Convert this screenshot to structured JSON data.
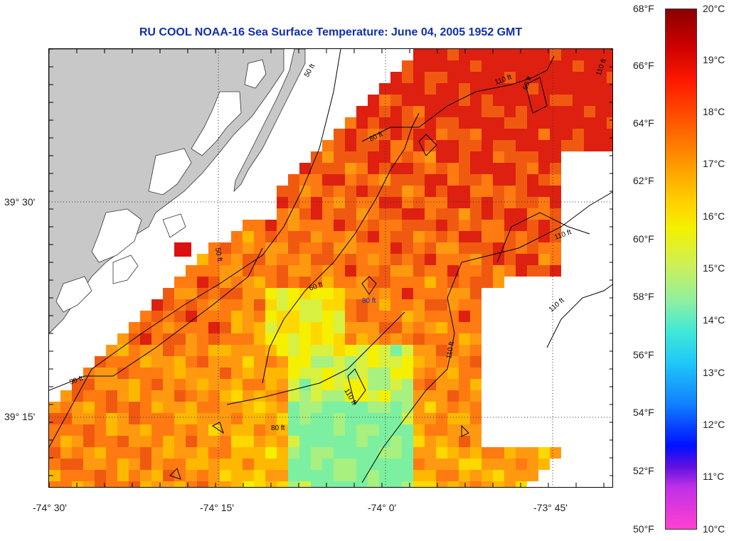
{
  "title": "RU COOL  NOAA-16  Sea Surface Temperature:  June 04, 2005 1952 GMT",
  "axes": {
    "x_ticks": [
      "-74° 30'",
      "-74° 15'",
      "-74° 0'",
      "-73° 45'"
    ],
    "y_ticks": [
      "39° 30'",
      "39° 15'"
    ]
  },
  "contours": {
    "labels": [
      "50 ft",
      "50 ft",
      "50 ft",
      "80 ft",
      "80 ft",
      "80 ft",
      "60 ft",
      "60 ft",
      "110 ft",
      "110 ft",
      "110 ft",
      "110 ft",
      "110 ft",
      "110 ft"
    ]
  },
  "colorbar": {
    "celsius": [
      "20°C",
      "19°C",
      "18°C",
      "17°C",
      "16°C",
      "15°C",
      "14°C",
      "13°C",
      "12°C",
      "11°C",
      "10°C"
    ],
    "fahrenheit": [
      "68°F",
      "66°F",
      "64°F",
      "62°F",
      "60°F",
      "58°F",
      "56°F",
      "54°F",
      "52°F",
      "50°F"
    ]
  },
  "colors": {
    "land": "#c8c8c8",
    "title": "#1030b0",
    "scale_top": "#8b0000",
    "scale_bottom": "#ff40d0"
  }
}
